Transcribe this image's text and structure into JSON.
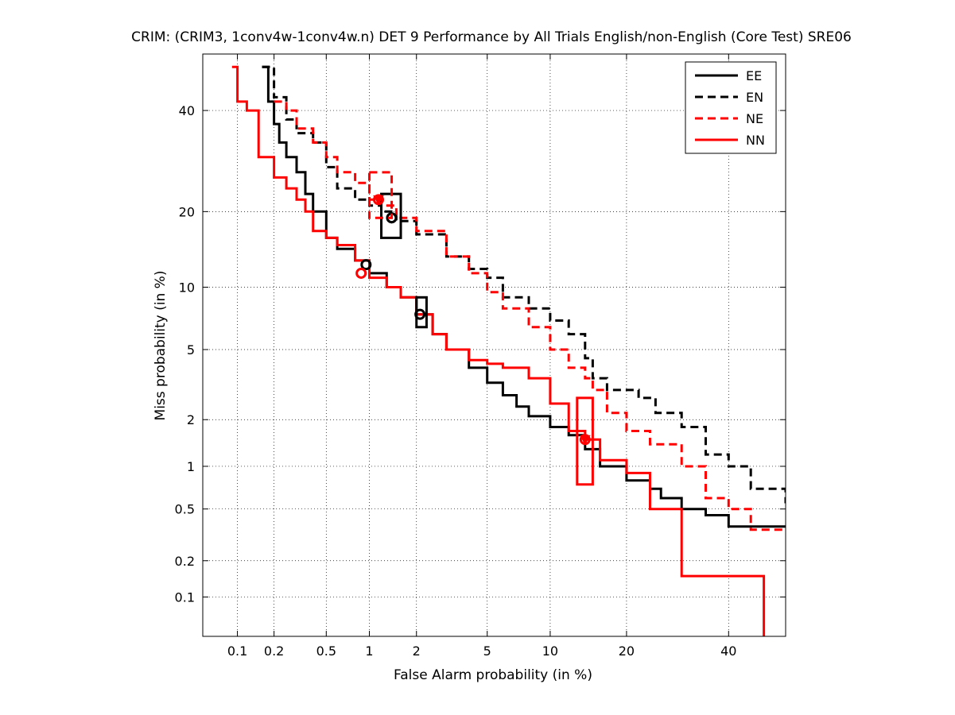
{
  "chart_data": {
    "type": "line",
    "title": "CRIM: (CRIM3, 1conv4w-1conv4w.n) DET 9 Performance by All Trials English/non-English (Core Test) SRE06",
    "xlabel": "False Alarm probability (in %)",
    "ylabel": "Miss probability (in %)",
    "xlim": [
      0.05,
      53
    ],
    "ylim": [
      0.045,
      53
    ],
    "xscale": "probit",
    "yscale": "probit",
    "grid": true,
    "legend_position": "top-right",
    "x_ticks": [
      0.1,
      0.2,
      0.5,
      1,
      2,
      5,
      10,
      20,
      40
    ],
    "x_tick_labels": [
      "0.1",
      "0.2",
      "0.5",
      "1",
      "2",
      "5",
      "10",
      "20",
      "40"
    ],
    "y_ticks": [
      0.1,
      0.2,
      0.5,
      1,
      2,
      5,
      10,
      20,
      40
    ],
    "y_tick_labels": [
      "0.1",
      "0.2",
      "0.5",
      "1",
      "2",
      "5",
      "10",
      "20",
      "40"
    ],
    "series": [
      {
        "name": "EE",
        "color": "#000000",
        "style": "solid",
        "x": [
          0.16,
          0.18,
          0.2,
          0.22,
          0.25,
          0.3,
          0.35,
          0.4,
          0.5,
          0.6,
          0.8,
          1.0,
          1.3,
          1.6,
          2.0,
          2.5,
          3.0,
          4.0,
          5.0,
          6.0,
          7.0,
          8.0,
          10.0,
          12.0,
          14.0,
          16.0,
          20.0,
          24.0,
          26.0,
          30.0,
          35.0,
          40.0,
          53.0
        ],
        "y": [
          50,
          42,
          37,
          33,
          30,
          27,
          23,
          20,
          16,
          14.5,
          13,
          11.5,
          10,
          9,
          7.5,
          6,
          5,
          4,
          3.3,
          2.8,
          2.4,
          2.1,
          1.8,
          1.6,
          1.3,
          1.0,
          0.8,
          0.7,
          0.6,
          0.5,
          0.45,
          0.37,
          0.37
        ],
        "actual_point": [
          0.95,
          12.5
        ],
        "min_dcf_point": [
          1.4,
          19
        ],
        "conf_box": {
          "x": [
            1.2,
            1.6
          ],
          "y": [
            16,
            23
          ]
        }
      },
      {
        "name": "EN",
        "color": "#000000",
        "style": "dashed",
        "x": [
          0.16,
          0.2,
          0.25,
          0.3,
          0.4,
          0.5,
          0.6,
          0.8,
          1.0,
          1.2,
          1.5,
          2.0,
          3.0,
          4.0,
          5.0,
          6.0,
          8.0,
          10.0,
          12.0,
          14.0,
          15.0,
          17.0,
          20.0,
          22.0,
          25.0,
          30.0,
          35.0,
          40.0,
          45.0,
          53.0
        ],
        "y": [
          50,
          43,
          38,
          35,
          33,
          28,
          24,
          22,
          21,
          20,
          18.5,
          16.5,
          13.5,
          12,
          11,
          9,
          8,
          7,
          6,
          4.5,
          3.5,
          3,
          3,
          2.7,
          2.2,
          1.8,
          1.2,
          1.0,
          0.7,
          0.55
        ],
        "min_dcf_point": [
          1.4,
          19
        ]
      },
      {
        "name": "NE",
        "color": "#ff0000",
        "style": "dashed",
        "x": [
          0.2,
          0.25,
          0.3,
          0.4,
          0.5,
          0.6,
          0.8,
          1.0,
          1.2,
          1.5,
          2.0,
          3.0,
          4.0,
          5.0,
          6.0,
          8.0,
          10.0,
          12.0,
          14.0,
          15.0,
          17.0,
          20.0,
          24.0,
          30.0,
          35.0,
          40.0,
          45.0,
          53.0
        ],
        "y": [
          42,
          40,
          36,
          33,
          30,
          27,
          25,
          22,
          21,
          19,
          17,
          13.5,
          11.5,
          9.5,
          8,
          6.5,
          5,
          4,
          3.5,
          3,
          2.2,
          1.7,
          1.4,
          1.0,
          0.6,
          0.5,
          0.35,
          0.35
        ],
        "actual_point": [
          0.88,
          11.5
        ],
        "min_dcf_point": [
          1.15,
          22
        ],
        "conf_box": {
          "x": [
            1.0,
            1.4
          ],
          "y": [
            19,
            27
          ]
        }
      },
      {
        "name": "NN",
        "color": "#ff0000",
        "style": "solid",
        "x": [
          0.09,
          0.1,
          0.12,
          0.15,
          0.2,
          0.25,
          0.3,
          0.35,
          0.4,
          0.5,
          0.6,
          0.8,
          1.0,
          1.3,
          1.6,
          2.0,
          2.5,
          3.0,
          4.0,
          5.0,
          6.0,
          8.0,
          10.0,
          12.0,
          14.0,
          16.0,
          20.0,
          24.0,
          30.0,
          40.0,
          48.0,
          48.0
        ],
        "y": [
          50,
          42,
          40,
          30,
          26,
          24,
          22,
          20,
          17,
          16,
          15,
          13,
          11,
          10,
          9,
          7.5,
          6,
          5,
          4.4,
          4.2,
          4.0,
          3.5,
          2.5,
          1.7,
          1.5,
          1.1,
          0.9,
          0.5,
          0.15,
          0.15,
          0.15,
          0.045
        ],
        "actual_point": [
          14,
          1.5
        ],
        "conf_box": {
          "x": [
            13,
            15
          ],
          "y": [
            0.75,
            2.7
          ]
        }
      }
    ],
    "extra_conf_box": {
      "color": "#000000",
      "x": [
        2.0,
        2.3
      ],
      "y": [
        6.5,
        9
      ]
    },
    "extra_actual_point": {
      "color": "#000000",
      "x": 2.1,
      "y": 7.5
    }
  }
}
